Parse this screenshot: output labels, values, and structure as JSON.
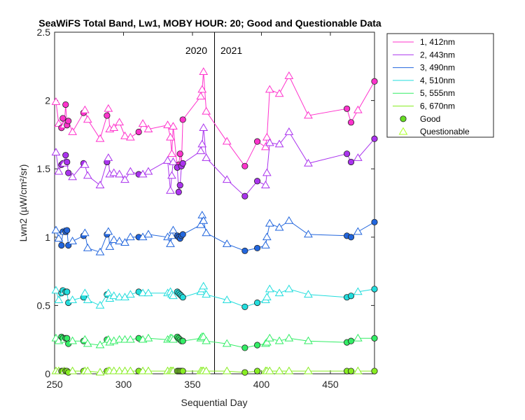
{
  "chart_data": {
    "type": "line",
    "title": "SeaWiFS Total Band, Lw1, MOBY HOUR: 20;  Good and Questionable Data",
    "xlabel": "Sequential Day",
    "ylabel": "Lwn2 (µW/cm²/sr)",
    "xlim": [
      250,
      482
    ],
    "ylim": [
      0,
      2.5
    ],
    "xticks": [
      "250",
      "300",
      "350",
      "400",
      "450"
    ],
    "yticks": [
      "0",
      "0.5",
      "1",
      "1.5",
      "2",
      "2.5"
    ],
    "year_divider": {
      "x": 366,
      "left_label": "2020",
      "right_label": "2021"
    },
    "grid": false,
    "legend_position": "outside-right",
    "legend": [
      "1, 412nm",
      "2, 443nm",
      "3, 490nm",
      "4, 510nm",
      "5, 555nm",
      "6, 670nm",
      "Good",
      "Questionable"
    ],
    "marker_legend": {
      "good": {
        "label": "Good",
        "color": "#66dd22"
      },
      "questionable": {
        "label": "Questionable",
        "color": "#aaff22"
      }
    },
    "x": [
      251,
      253,
      255,
      256,
      257,
      258,
      259,
      260,
      263,
      271,
      272,
      274,
      283,
      288,
      289,
      290,
      293,
      297,
      301,
      305,
      311,
      314,
      318,
      332,
      334,
      335,
      336,
      339,
      340,
      341,
      342,
      343,
      356,
      357,
      358,
      360,
      375,
      388,
      397,
      403,
      404,
      406,
      413,
      420,
      434,
      462,
      465,
      470,
      482
    ],
    "good": [
      false,
      false,
      true,
      true,
      false,
      true,
      true,
      true,
      false,
      true,
      false,
      false,
      false,
      true,
      false,
      false,
      false,
      false,
      false,
      false,
      true,
      false,
      false,
      false,
      false,
      false,
      false,
      true,
      true,
      true,
      true,
      true,
      false,
      false,
      false,
      false,
      false,
      true,
      true,
      false,
      false,
      false,
      false,
      false,
      false,
      true,
      true,
      false,
      true
    ],
    "series": [
      {
        "name": "1, 412nm",
        "color": "#ff33cc",
        "values": [
          1.99,
          1.83,
          1.8,
          1.87,
          1.82,
          1.97,
          1.82,
          1.85,
          1.77,
          1.91,
          1.93,
          1.86,
          1.72,
          1.89,
          1.94,
          1.79,
          1.8,
          1.84,
          1.74,
          1.73,
          1.77,
          1.83,
          1.79,
          1.82,
          1.73,
          1.61,
          1.81,
          1.51,
          1.53,
          1.61,
          1.52,
          1.86,
          2.03,
          2.08,
          2.21,
          1.92,
          1.7,
          1.52,
          1.7,
          1.66,
          1.73,
          2.08,
          2.05,
          2.18,
          1.89,
          1.94,
          1.84,
          1.93,
          2.14
        ]
      },
      {
        "name": "2, 443nm",
        "color": "#aa33ee",
        "values": [
          1.62,
          1.48,
          1.53,
          1.54,
          1.54,
          1.6,
          1.55,
          1.47,
          1.44,
          1.54,
          1.53,
          1.45,
          1.38,
          1.55,
          1.58,
          1.46,
          1.47,
          1.46,
          1.42,
          1.48,
          1.46,
          1.46,
          1.48,
          1.56,
          1.34,
          1.45,
          1.55,
          1.51,
          1.33,
          1.38,
          1.52,
          1.54,
          1.63,
          1.68,
          1.8,
          1.58,
          1.42,
          1.3,
          1.41,
          1.38,
          1.47,
          1.69,
          1.68,
          1.77,
          1.54,
          1.61,
          1.55,
          1.58,
          1.72
        ]
      },
      {
        "name": "3, 490nm",
        "color": "#2266dd",
        "values": [
          1.05,
          0.99,
          0.94,
          1.04,
          1.04,
          1.04,
          1.05,
          0.94,
          0.97,
          1.01,
          1.03,
          0.92,
          0.89,
          1.02,
          1.04,
          0.93,
          0.98,
          0.97,
          0.96,
          1.0,
          1.0,
          1.0,
          1.02,
          1.0,
          0.95,
          1.01,
          1.05,
          1.01,
          1.0,
          0.99,
          1.01,
          1.02,
          1.09,
          1.16,
          1.12,
          1.03,
          0.95,
          0.9,
          0.92,
          0.94,
          1.0,
          1.1,
          1.07,
          1.12,
          1.02,
          1.01,
          1.0,
          1.04,
          1.11
        ]
      },
      {
        "name": "4, 510nm",
        "color": "#22dddd",
        "values": [
          0.61,
          0.54,
          0.59,
          0.61,
          0.6,
          0.6,
          0.6,
          0.52,
          0.54,
          0.56,
          0.59,
          0.54,
          0.5,
          0.58,
          0.59,
          0.55,
          0.57,
          0.56,
          0.56,
          0.58,
          0.6,
          0.59,
          0.59,
          0.59,
          0.6,
          0.58,
          0.57,
          0.6,
          0.59,
          0.58,
          0.57,
          0.56,
          0.6,
          0.62,
          0.64,
          0.58,
          0.54,
          0.49,
          0.52,
          0.54,
          0.56,
          0.62,
          0.59,
          0.62,
          0.58,
          0.56,
          0.57,
          0.6,
          0.62
        ]
      },
      {
        "name": "5, 555nm",
        "color": "#33ee66",
        "values": [
          0.26,
          0.24,
          0.27,
          0.26,
          0.25,
          0.26,
          0.26,
          0.22,
          0.24,
          0.24,
          0.25,
          0.22,
          0.21,
          0.25,
          0.25,
          0.23,
          0.24,
          0.25,
          0.25,
          0.25,
          0.26,
          0.25,
          0.26,
          0.25,
          0.26,
          0.26,
          0.25,
          0.27,
          0.26,
          0.25,
          0.24,
          0.24,
          0.26,
          0.27,
          0.27,
          0.24,
          0.22,
          0.19,
          0.21,
          0.22,
          0.23,
          0.26,
          0.24,
          0.26,
          0.24,
          0.23,
          0.24,
          0.26,
          0.26
        ]
      },
      {
        "name": "6, 670nm",
        "color": "#88ee22",
        "values": [
          0.02,
          0.02,
          0.02,
          0.02,
          0.02,
          0.02,
          0.02,
          0.01,
          0.02,
          0.02,
          0.02,
          0.02,
          0.01,
          0.02,
          0.02,
          0.02,
          0.02,
          0.02,
          0.02,
          0.02,
          0.02,
          0.02,
          0.02,
          0.02,
          0.02,
          0.02,
          0.02,
          0.02,
          0.02,
          0.02,
          0.02,
          0.02,
          0.02,
          0.02,
          0.02,
          0.02,
          0.02,
          0.01,
          0.02,
          0.02,
          0.02,
          0.02,
          0.02,
          0.02,
          0.02,
          0.02,
          0.02,
          0.02,
          0.02
        ]
      }
    ]
  }
}
